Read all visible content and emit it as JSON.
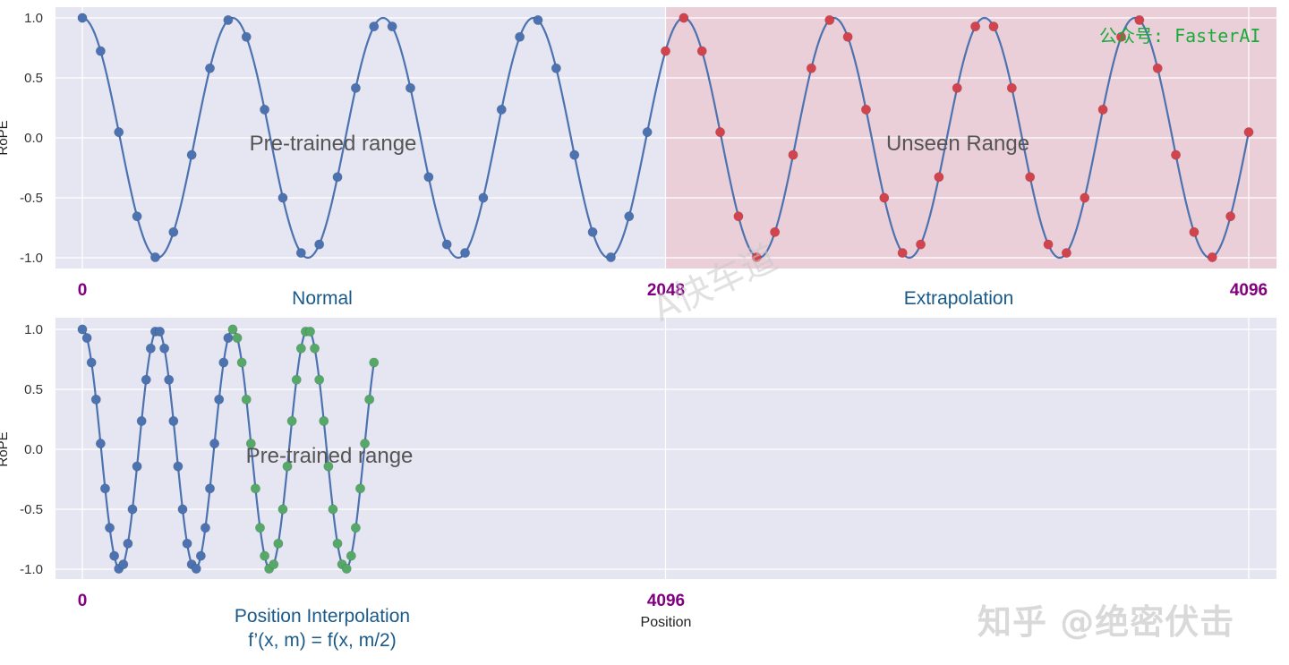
{
  "watermarks": {
    "top_right": "公众号: FasterAI",
    "bottom_right": "知乎 @绝密伏击",
    "diagonal": "A快车道"
  },
  "colors": {
    "plot_bg": "#e6e6f2",
    "unseen_bg": "#ebcfd8",
    "curve": "#4c72b0",
    "marker_blue": "#4c72b0",
    "marker_red": "#d1434d",
    "marker_green": "#55a868",
    "pos_label": "#800080",
    "caption": "#1a5a8a",
    "region_text": "#555555"
  },
  "chart_data": [
    {
      "type": "line",
      "ylabel": "RoPE",
      "ylim": [
        -1.1,
        1.1
      ],
      "yticks": [
        1.0,
        0.5,
        0.0,
        -0.5,
        -1.0
      ],
      "ytick_labels": [
        "1.0",
        "0.5",
        "0.0",
        "-0.5",
        "-1.0"
      ],
      "xlim": [
        0,
        4096
      ],
      "xticks": [
        0,
        2048,
        4096
      ],
      "xtick_labels": [
        "0",
        "2048",
        "4096"
      ],
      "grid": true,
      "curve": {
        "function": "cos",
        "period_positions": 528,
        "domain": [
          0,
          4096
        ]
      },
      "regions": [
        {
          "label": "Pre-trained range",
          "x": [
            0,
            2048
          ],
          "shaded": false
        },
        {
          "label": "Unseen Range",
          "x": [
            2048,
            4096
          ],
          "shaded": true
        }
      ],
      "captions": [
        {
          "text": "Normal",
          "center_x": 825
        },
        {
          "text": "Extrapolation",
          "center_x": 3072
        }
      ],
      "series": [
        {
          "marker_color": "blue",
          "x_start": 0,
          "x_end": 1984,
          "step": 64
        },
        {
          "marker_color": "red",
          "x_start": 2048,
          "x_end": 4096,
          "step": 64
        }
      ]
    },
    {
      "type": "line",
      "ylabel": "RoPE",
      "ylim": [
        -1.1,
        1.1
      ],
      "yticks": [
        1.0,
        0.5,
        0.0,
        -0.5,
        -1.0
      ],
      "ytick_labels": [
        "1.0",
        "0.5",
        "0.0",
        "-0.5",
        "-1.0"
      ],
      "xlim": [
        0,
        8192
      ],
      "xticks": [
        0,
        4096,
        8192
      ],
      "xtick_labels": [
        "0",
        "4096",
        ""
      ],
      "xlabel": "Position",
      "grid": true,
      "curve": {
        "function": "cos",
        "period_positions": 528,
        "domain": [
          0,
          2048
        ]
      },
      "regions": [
        {
          "label": "Pre-trained range",
          "x": [
            0,
            1024
          ],
          "shaded": false
        }
      ],
      "captions": [
        {
          "text": "Position Interpolation",
          "center_x": 1655
        },
        {
          "text": "f’(x, m) = f(x, m/2)",
          "center_x": 1655
        }
      ],
      "series": [
        {
          "marker_color": "blue",
          "x_start": 0,
          "x_end": 1024,
          "step": 32
        },
        {
          "marker_color": "green",
          "x_start": 1056,
          "x_end": 2048,
          "step": 32
        }
      ]
    }
  ]
}
